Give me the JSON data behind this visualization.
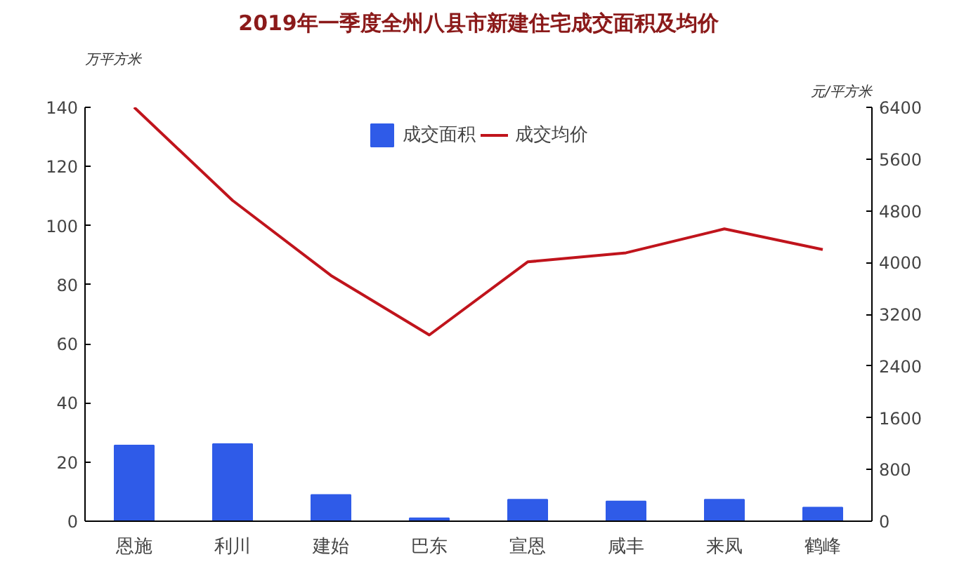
{
  "chart_data": {
    "type": "bar",
    "title": "2019年一季度全州八县市新建住宅成交面积及均价",
    "ylabel": "万平方米",
    "y2label": "元/平方米",
    "categories": [
      "恩施",
      "利川",
      "建始",
      "巴东",
      "宣恩",
      "咸丰",
      "来凤",
      "鹤峰"
    ],
    "series": [
      {
        "name": "成交面积",
        "color": "#2f5be8",
        "values": [
          25.6,
          26.1,
          8.9,
          1.0,
          7.3,
          6.7,
          7.3,
          4.6
        ]
      },
      {
        "name": "成交均价",
        "type": "line",
        "axis": "y2",
        "color": "#c0141c",
        "values": [
          6400,
          4960,
          3800,
          2880,
          4010,
          4150,
          4520,
          4200
        ]
      }
    ],
    "ylim": [
      0,
      140
    ],
    "yticks": [
      0,
      20,
      40,
      60,
      80,
      100,
      120,
      140
    ],
    "y2lim": [
      0,
      6400
    ],
    "y2ticks": [
      0,
      800,
      1600,
      2400,
      3200,
      4000,
      4800,
      5600,
      6400
    ],
    "grid": false,
    "legend": "top",
    "marker": "none",
    "line_style": "solid"
  }
}
